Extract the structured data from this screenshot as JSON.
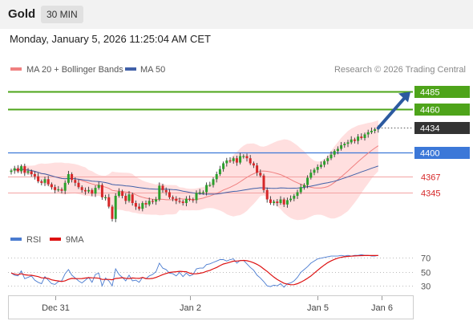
{
  "header": {
    "title": "Gold",
    "timeframe": "30 MIN"
  },
  "timestamp": "Monday, January 5, 2026 11:25:04 AM CET",
  "watermark": "Research © 2026 Trading Central",
  "colors": {
    "bull": "#2ca02c",
    "bear": "#d62728",
    "ma20": "#f08080",
    "bb_fill": "#ffd9d9",
    "ma50": "#4060a8",
    "support_line": "#3c78d8",
    "target": "#4ea41a",
    "arrow": "#2c5aa0",
    "rsi": "#4a7bd0",
    "rsi_ma": "#dd1111",
    "grid": "#bbbbbb",
    "last": "#333333"
  },
  "chart_data": [
    {
      "type": "candlestick",
      "title": "",
      "legend": [
        {
          "name": "MA 20 + Bollinger Bands",
          "color": "#f08080"
        },
        {
          "name": "MA 50",
          "color": "#4060a8"
        }
      ],
      "ylim": [
        4300,
        4500
      ],
      "x_ticks": [
        {
          "label": "Dec 31",
          "index": 13
        },
        {
          "label": "Jan 2",
          "index": 53
        },
        {
          "label": "Jan 5",
          "index": 91
        },
        {
          "label": "Jan 6",
          "index": 110
        }
      ],
      "levels": [
        {
          "label": "4485",
          "value": 4485,
          "kind": "target"
        },
        {
          "label": "4460",
          "value": 4460,
          "kind": "target"
        },
        {
          "label": "4434",
          "value": 4434,
          "kind": "last"
        },
        {
          "label": "4400",
          "value": 4400,
          "kind": "pivot"
        },
        {
          "label": "4367",
          "value": 4367,
          "kind": "support"
        },
        {
          "label": "4345",
          "value": 4345,
          "kind": "support"
        }
      ],
      "arrow": {
        "from_index": 109,
        "from_value": 4434,
        "to_index": 122,
        "to_value": 4485
      },
      "close": [
        4375,
        4378,
        4374,
        4381,
        4372,
        4374,
        4370,
        4367,
        4360,
        4358,
        4363,
        4356,
        4352,
        4348,
        4349,
        4347,
        4358,
        4370,
        4362,
        4358,
        4352,
        4348,
        4346,
        4348,
        4343,
        4351,
        4355,
        4338,
        4338,
        4325,
        4308,
        4340,
        4346,
        4340,
        4333,
        4342,
        4330,
        4325,
        4322,
        4330,
        4328,
        4333,
        4332,
        4335,
        4354,
        4348,
        4345,
        4338,
        4336,
        4333,
        4332,
        4330,
        4336,
        4335,
        4334,
        4344,
        4345,
        4345,
        4355,
        4355,
        4363,
        4370,
        4377,
        4385,
        4389,
        4388,
        4392,
        4386,
        4395,
        4395,
        4392,
        4385,
        4382,
        4372,
        4368,
        4348,
        4335,
        4330,
        4332,
        4330,
        4335,
        4328,
        4334,
        4336,
        4340,
        4345,
        4352,
        4355,
        4365,
        4372,
        4376,
        4380,
        4383,
        4388,
        4392,
        4397,
        4402,
        4405,
        4410,
        4412,
        4414,
        4418,
        4416,
        4422,
        4420,
        4425,
        4428,
        4430,
        4432,
        4434
      ],
      "rsi": {
        "ylim": [
          20,
          80
        ],
        "ticks": [
          "70",
          "50",
          "30"
        ],
        "legend": [
          {
            "name": "RSI",
            "color": "#4a7bd0"
          },
          {
            "name": "9MA",
            "color": "#dd1111"
          }
        ],
        "values": [
          48,
          45,
          44,
          51,
          40,
          42,
          44,
          38,
          35,
          33,
          43,
          38,
          33,
          32,
          36,
          37,
          47,
          53,
          45,
          41,
          37,
          34,
          38,
          42,
          35,
          46,
          48,
          30,
          41,
          37,
          30,
          54,
          46,
          42,
          37,
          45,
          37,
          38,
          35,
          42,
          40,
          44,
          46,
          50,
          62,
          55,
          53,
          48,
          47,
          44,
          49,
          43,
          48,
          44,
          46,
          54,
          55,
          55,
          60,
          61,
          63,
          65,
          67,
          67,
          65,
          67,
          68,
          62,
          66,
          66,
          61,
          56,
          52,
          45,
          41,
          36,
          30,
          29,
          31,
          30,
          33,
          28,
          33,
          34,
          37,
          42,
          49,
          53,
          57,
          62,
          65,
          68,
          69,
          70,
          71,
          72,
          72,
          72,
          73,
          72,
          73,
          72,
          73,
          73,
          74,
          73,
          73,
          72,
          72,
          73
        ]
      }
    }
  ]
}
